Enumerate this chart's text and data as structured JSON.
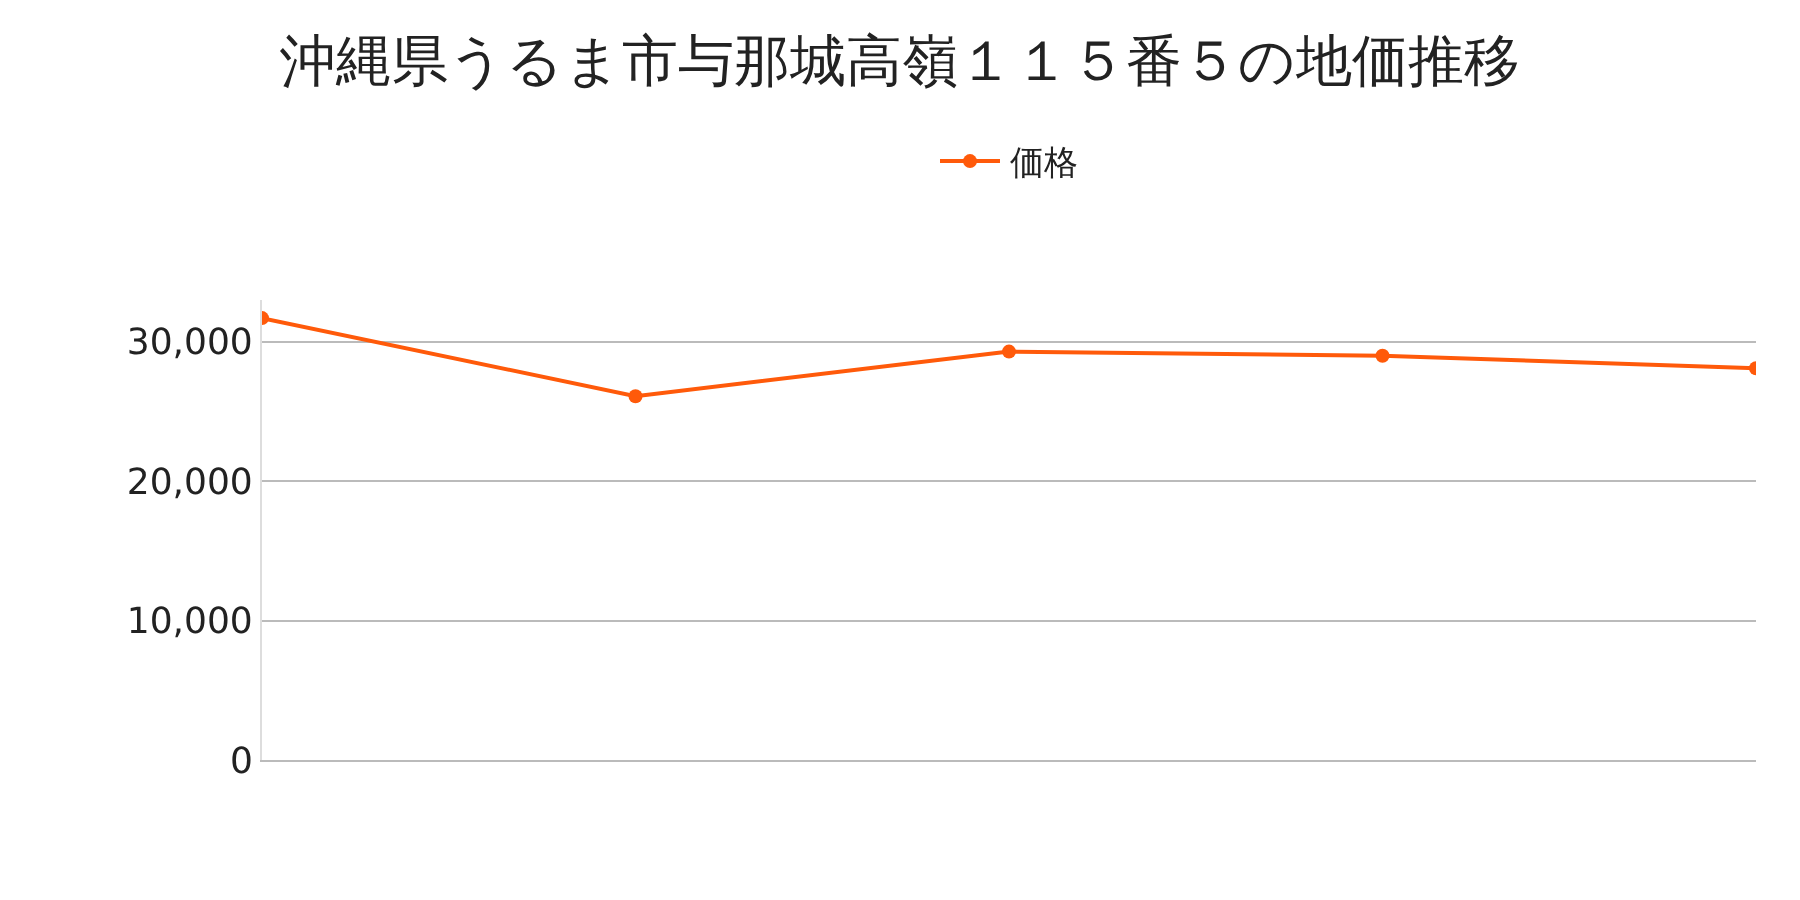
{
  "chart_data": {
    "type": "line",
    "title": "沖縄県うるま市与那城高嶺１１５番５の地価推移",
    "categories": [
      null,
      null,
      null,
      null,
      null
    ],
    "series": [
      {
        "name": "価格",
        "color": "#ff5a0a",
        "values": [
          31700,
          26100,
          29300,
          29000,
          28100
        ]
      }
    ],
    "ylim": [
      0,
      33000
    ],
    "yticks": [
      {
        "value": 0,
        "label": "0"
      },
      {
        "value": 10000,
        "label": "10,000"
      },
      {
        "value": 20000,
        "label": "20,000"
      },
      {
        "value": 30000,
        "label": "30,000"
      }
    ],
    "grid": "y",
    "legend": "top",
    "marker": "circle",
    "line_style": "solid",
    "tick_labels": "y"
  }
}
